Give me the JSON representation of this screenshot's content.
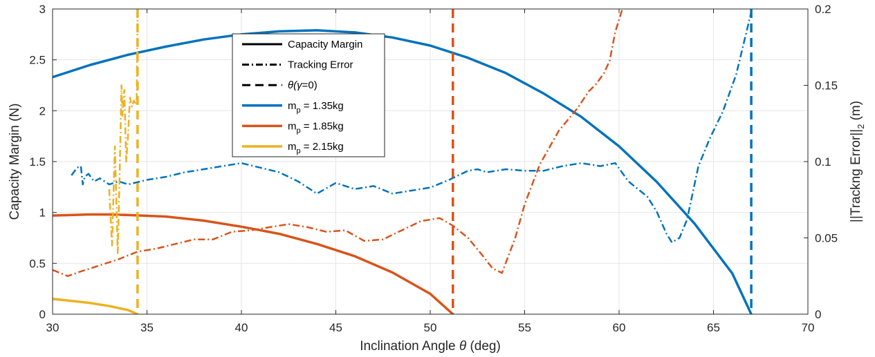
{
  "chart_data": {
    "type": "line",
    "title": "",
    "xlabel_main": "Inclination Angle ",
    "xlabel_theta": "θ",
    "xlabel_unit": " (deg)",
    "ylabel": "Capacity Margin (N)",
    "y2label_pre": "||Trackng Error||",
    "y2label_sub": "2",
    "y2label_post": " (m)",
    "xlim": [
      30,
      70
    ],
    "ylim": [
      0,
      3
    ],
    "y2lim": [
      0,
      0.2
    ],
    "xticks": [
      "30",
      "35",
      "40",
      "45",
      "50",
      "55",
      "60",
      "65",
      "70"
    ],
    "yticks": [
      "0",
      "0.5",
      "1",
      "1.5",
      "2",
      "2.5",
      "3"
    ],
    "y2ticks": [
      "0",
      "0.05",
      "0.1",
      "0.15",
      "0.2"
    ],
    "grid": true,
    "legend_position": "top-center",
    "legend": {
      "style_entries": [
        {
          "label": "Capacity Margin",
          "style": "solid"
        },
        {
          "label": "Tracking Error",
          "style": "dashdot"
        },
        {
          "label_theta": "θ(",
          "label_gamma": "γ",
          "label_rest": "=0)",
          "style": "dashed"
        }
      ],
      "mass_entries": [
        {
          "prefix": "m",
          "sub": "p",
          "value": " = 1.35kg",
          "color": "#0072bd"
        },
        {
          "prefix": "m",
          "sub": "p",
          "value": " = 1.85kg",
          "color": "#d95319"
        },
        {
          "prefix": "m",
          "sub": "p",
          "value": " = 2.15kg",
          "color": "#edb120"
        }
      ]
    },
    "series": [
      {
        "name": "m_p = 1.35kg",
        "color": "#0072bd",
        "capacity_margin": {
          "x": [
            30,
            32,
            34,
            36,
            38,
            40,
            42,
            44,
            46,
            48,
            50,
            52,
            54,
            56,
            58,
            60,
            62,
            64,
            66,
            67
          ],
          "y": [
            2.33,
            2.45,
            2.55,
            2.63,
            2.7,
            2.75,
            2.78,
            2.79,
            2.77,
            2.72,
            2.64,
            2.52,
            2.37,
            2.17,
            1.94,
            1.65,
            1.3,
            0.89,
            0.4,
            0.0
          ]
        },
        "tracking_error": {
          "x": [
            31,
            31.3,
            31.5,
            31.6,
            31.7,
            31.9,
            32.2,
            32.5,
            33,
            33.5,
            34,
            35,
            36,
            37,
            38,
            39,
            40,
            41,
            42,
            43,
            44,
            45,
            46,
            47,
            48,
            49,
            50,
            51,
            51.5,
            52,
            52.5,
            53,
            54,
            55,
            56,
            57,
            58,
            59,
            59.8,
            60.5,
            61.5,
            62,
            62.5,
            62.8,
            63.2,
            63.6,
            64.2,
            64.8,
            65.5,
            66.2,
            67
          ],
          "y": [
            0.091,
            0.096,
            0.097,
            0.085,
            0.09,
            0.092,
            0.087,
            0.089,
            0.085,
            0.087,
            0.085,
            0.088,
            0.09,
            0.093,
            0.095,
            0.097,
            0.099,
            0.096,
            0.093,
            0.087,
            0.079,
            0.086,
            0.082,
            0.084,
            0.079,
            0.081,
            0.083,
            0.088,
            0.091,
            0.094,
            0.095,
            0.093,
            0.095,
            0.094,
            0.094,
            0.097,
            0.099,
            0.097,
            0.099,
            0.087,
            0.077,
            0.067,
            0.053,
            0.047,
            0.05,
            0.062,
            0.097,
            0.115,
            0.133,
            0.157,
            0.198
          ]
        }
      },
      {
        "name": "m_p = 1.85kg",
        "color": "#d95319",
        "capacity_margin": {
          "x": [
            30,
            31,
            32,
            33,
            34,
            36,
            38,
            40,
            42,
            44,
            46,
            48,
            50,
            51.2
          ],
          "y": [
            0.97,
            0.975,
            0.98,
            0.98,
            0.975,
            0.96,
            0.92,
            0.86,
            0.79,
            0.69,
            0.57,
            0.41,
            0.2,
            0.0
          ]
        },
        "tracking_error": {
          "x": [
            30,
            30.8,
            31.5,
            32.5,
            33.5,
            34.5,
            35.5,
            36.5,
            37.5,
            38.5,
            39.5,
            40.5,
            41.5,
            42.5,
            43.5,
            44.5,
            45.5,
            46.5,
            47.5,
            48.5,
            49.5,
            50.5,
            51.2,
            52,
            52.8,
            53.3,
            53.8,
            54.5,
            55,
            55.8,
            56.8,
            57.8,
            58.4,
            58.8,
            59.2,
            59.5,
            59.8,
            60.3
          ],
          "y": [
            0.029,
            0.025,
            0.028,
            0.032,
            0.036,
            0.041,
            0.043,
            0.046,
            0.049,
            0.049,
            0.054,
            0.055,
            0.057,
            0.059,
            0.057,
            0.054,
            0.055,
            0.048,
            0.049,
            0.055,
            0.061,
            0.063,
            0.058,
            0.05,
            0.038,
            0.03,
            0.027,
            0.05,
            0.072,
            0.098,
            0.12,
            0.135,
            0.146,
            0.151,
            0.158,
            0.166,
            0.185,
            0.205
          ]
        }
      },
      {
        "name": "m_p = 2.15kg",
        "color": "#edb120",
        "capacity_margin": {
          "x": [
            30,
            31,
            32,
            33,
            34,
            34.5
          ],
          "y": [
            0.15,
            0.13,
            0.11,
            0.08,
            0.04,
            0.0
          ]
        },
        "tracking_error": {
          "x": [
            33,
            33.15,
            33.3,
            33.45,
            33.55,
            33.65,
            33.7,
            33.8,
            33.9,
            34.0,
            34.1,
            34.2,
            34.3,
            34.45,
            34.5
          ],
          "y": [
            0.082,
            0.045,
            0.11,
            0.04,
            0.09,
            0.15,
            0.13,
            0.147,
            0.1,
            0.118,
            0.142,
            0.136,
            0.14,
            0.137,
            0.2
          ]
        }
      }
    ],
    "theta_gamma_zero": [
      {
        "x": 34.5,
        "color": "#edb120"
      },
      {
        "x": 51.2,
        "color": "#d95319"
      },
      {
        "x": 67,
        "color": "#0072bd"
      }
    ]
  }
}
